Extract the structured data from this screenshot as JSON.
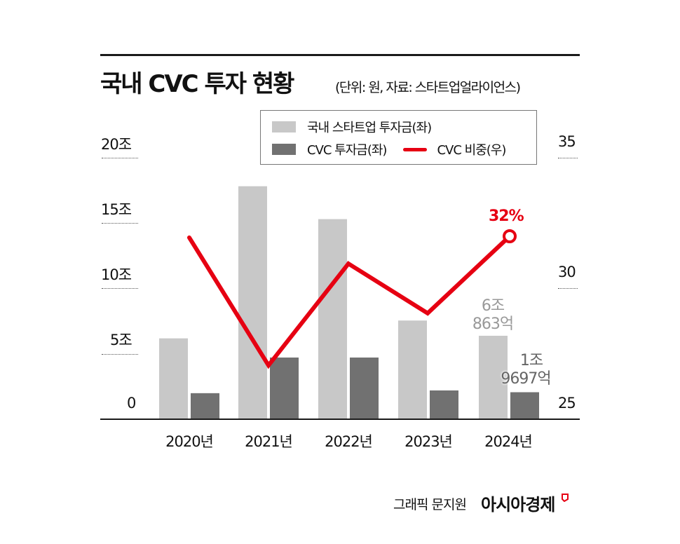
{
  "header": {
    "title": "국내 CVC 투자 현황",
    "subtitle": "(단위: 원, 자료: 스타트업얼라이언스)"
  },
  "legend": {
    "items": [
      {
        "label": "국내 스타트업 투자금(좌)",
        "type": "bar",
        "color": "#c8c8c8"
      },
      {
        "label": "CVC 투자금(좌)",
        "type": "bar",
        "color": "#717171"
      },
      {
        "label": "CVC 비중(우)",
        "type": "line",
        "color": "#e60012"
      }
    ]
  },
  "axes": {
    "left_ticks": [
      "20조",
      "15조",
      "10조",
      "5조",
      "0"
    ],
    "right_ticks": [
      "35",
      "30",
      "25"
    ]
  },
  "annotations": {
    "line_last": "32%",
    "bar1_last_line1": "6조",
    "bar1_last_line2": "863억",
    "bar2_last_line1": "1조",
    "bar2_last_line2": "9697억"
  },
  "footer": {
    "credit": "그래픽 문지원",
    "brand": "아시아경제"
  },
  "colors": {
    "startup_bar": "#c8c8c8",
    "cvc_bar": "#717171",
    "line": "#e60012",
    "axis": "#1a1a1a"
  },
  "chart_data": {
    "type": "bar",
    "title": "국내 CVC 투자 현황",
    "subtitle": "(단위: 원, 자료: 스타트업얼라이언스)",
    "categories": [
      "2020년",
      "2021년",
      "2022년",
      "2023년",
      "2024년"
    ],
    "series": [
      {
        "name": "국내 스타트업 투자금(좌)",
        "type": "bar",
        "axis": "left",
        "unit": "조원",
        "values": [
          5.9,
          17.0,
          14.6,
          7.2,
          6.09
        ]
      },
      {
        "name": "CVC 투자금(좌)",
        "type": "bar",
        "axis": "left",
        "unit": "조원",
        "values": [
          1.9,
          4.5,
          4.5,
          2.1,
          1.97
        ]
      },
      {
        "name": "CVC 비중(우)",
        "type": "line",
        "axis": "right",
        "unit": "%",
        "values": [
          31.4,
          26.5,
          30.4,
          28.5,
          32
        ]
      }
    ],
    "left_axis": {
      "ylim": [
        0,
        20
      ],
      "ticks": [
        "0",
        "5조",
        "10조",
        "15조",
        "20조"
      ]
    },
    "right_axis": {
      "ylim": [
        25,
        35
      ],
      "ticks": [
        "25",
        "30",
        "35"
      ]
    },
    "data_labels": {
      "2024년": {
        "국내 스타트업 투자금": "6조 863억",
        "CVC 투자금": "1조 9697억",
        "CVC 비중": "32%"
      }
    },
    "legend_position": "top-right",
    "grid": false
  }
}
